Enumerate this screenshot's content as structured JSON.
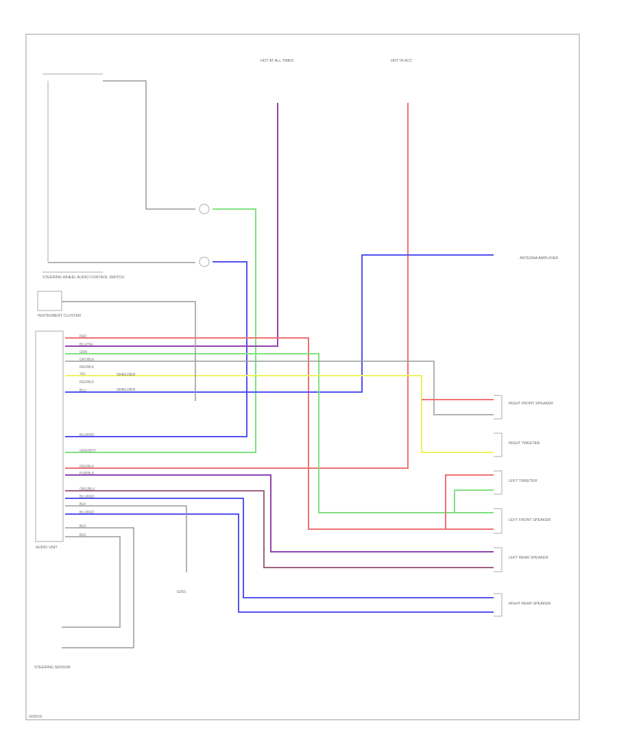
{
  "components": {
    "steering_switch": "STEERING WHEEL AUDIO CONTROL SWITCH",
    "instrument_cluster": "INSTRUMENT CLUSTER",
    "audio_unit": "AUDIO UNIT",
    "steering_sensor": "STEERING SENSOR",
    "fuse_top_left": "HOT AT ALL TIMES",
    "fuse_top_right": "HOT IN ACC",
    "antenna": "ANTENNA AMPLIFIER",
    "rf_speaker": "RIGHT FRONT SPEAKER",
    "r_tweeter": "RIGHT TWEETER",
    "l_tweeter": "LEFT TWEETER",
    "lf_speaker": "LEFT FRONT SPEAKER",
    "lr_speaker": "LEFT REAR SPEAKER",
    "rr_speaker": "RIGHT REAR SPEAKER",
    "ground": "G201",
    "shielded": "SHIELDED"
  },
  "colors": {
    "red": "#f07070",
    "blue": "#5050f0",
    "green": "#80e080",
    "purple": "#9040b0",
    "darkred": "#c03050",
    "yellow": "#f0f060",
    "orange": "#f0a050",
    "gray": "#999999",
    "brown": "#a06080"
  },
  "wire_labels": {
    "red": "RED",
    "blu_yel": "BLU/YEL",
    "grn": "GRN",
    "gry": "GRY/BLK",
    "yel": "YEL",
    "blu": "BLU",
    "red_blk": "RED/BLK",
    "pur": "PUR/BLK",
    "org": "ORG/BLU",
    "blu_red": "BLU/RED",
    "blk": "BLK",
    "grn_wht": "GRN/WHT"
  },
  "footer": "G00016"
}
